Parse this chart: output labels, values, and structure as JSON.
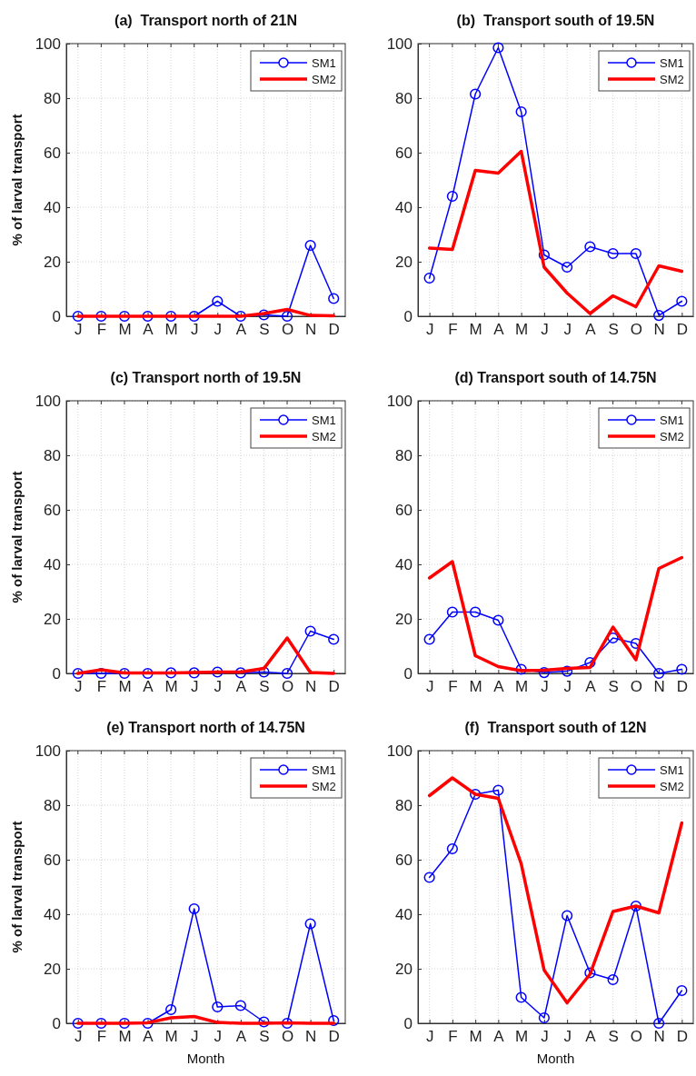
{
  "chart_data": [
    {
      "type": "line",
      "title": "(a)  Transport north of 21N",
      "ylabel": "% of larval transport",
      "categories": [
        "J",
        "F",
        "M",
        "A",
        "M",
        "J",
        "J",
        "A",
        "S",
        "O",
        "N",
        "D"
      ],
      "ylim": [
        0,
        100
      ],
      "yticks": [
        0,
        20,
        40,
        60,
        80,
        100
      ],
      "grid": true,
      "legend": "top right",
      "series": [
        {
          "name": "SM1",
          "color": "#0000ff",
          "marker": "circle",
          "values": [
            0,
            0,
            0,
            0,
            0,
            0,
            5.5,
            0,
            0.5,
            0,
            26,
            6.5
          ]
        },
        {
          "name": "SM2",
          "color": "#ff0000",
          "marker": "none",
          "values": [
            0,
            0,
            0,
            0,
            0,
            0,
            0,
            0,
            1,
            2.5,
            0.3,
            0.2
          ]
        }
      ]
    },
    {
      "type": "line",
      "title": "(b)  Transport south of 19.5N",
      "categories": [
        "J",
        "F",
        "M",
        "A",
        "M",
        "J",
        "J",
        "A",
        "S",
        "O",
        "N",
        "D"
      ],
      "ylim": [
        0,
        100
      ],
      "yticks": [
        0,
        20,
        40,
        60,
        80,
        100
      ],
      "grid": true,
      "legend": "top right",
      "series": [
        {
          "name": "SM1",
          "color": "#0000ff",
          "marker": "circle",
          "values": [
            14,
            44,
            81.5,
            98.5,
            75,
            22.5,
            18,
            25.5,
            23,
            23,
            0.3,
            5.5
          ]
        },
        {
          "name": "SM2",
          "color": "#ff0000",
          "marker": "none",
          "values": [
            25,
            24.5,
            53.5,
            52.5,
            60.5,
            18,
            8.5,
            1,
            7.5,
            3.5,
            18.5,
            16.5
          ]
        }
      ]
    },
    {
      "type": "line",
      "title": "(c) Transport north of 19.5N",
      "ylabel": "% of larval transport",
      "categories": [
        "J",
        "F",
        "M",
        "A",
        "M",
        "J",
        "J",
        "A",
        "S",
        "O",
        "N",
        "D"
      ],
      "ylim": [
        0,
        100
      ],
      "yticks": [
        0,
        20,
        40,
        60,
        80,
        100
      ],
      "grid": true,
      "legend": "top right",
      "series": [
        {
          "name": "SM1",
          "color": "#0000ff",
          "marker": "circle",
          "values": [
            0,
            0,
            0,
            0,
            0.2,
            0.2,
            0.5,
            0.2,
            0.5,
            0,
            15.5,
            12.5
          ]
        },
        {
          "name": "SM2",
          "color": "#ff0000",
          "marker": "none",
          "values": [
            0,
            1.3,
            0.2,
            0.2,
            0.2,
            0.3,
            0.5,
            0.5,
            1.8,
            13,
            0.3,
            0
          ]
        }
      ]
    },
    {
      "type": "line",
      "title": "(d) Transport south of 14.75N",
      "categories": [
        "J",
        "F",
        "M",
        "A",
        "M",
        "J",
        "J",
        "A",
        "S",
        "O",
        "N",
        "D"
      ],
      "ylim": [
        0,
        100
      ],
      "yticks": [
        0,
        20,
        40,
        60,
        80,
        100
      ],
      "grid": true,
      "legend": "top right",
      "series": [
        {
          "name": "SM1",
          "color": "#0000ff",
          "marker": "circle",
          "values": [
            12.5,
            22.5,
            22.5,
            19.5,
            1.5,
            0.3,
            0.8,
            4,
            13,
            11,
            0,
            1.5
          ]
        },
        {
          "name": "SM2",
          "color": "#ff0000",
          "marker": "none",
          "values": [
            35,
            41,
            6.5,
            2.5,
            1,
            1.2,
            1.8,
            2.2,
            17,
            5,
            38.5,
            42.5
          ]
        }
      ]
    },
    {
      "type": "line",
      "title": "(e) Transport north of 14.75N",
      "ylabel": "% of larval transport",
      "xlabel": "Month",
      "categories": [
        "J",
        "F",
        "M",
        "A",
        "M",
        "J",
        "J",
        "A",
        "S",
        "O",
        "N",
        "D"
      ],
      "ylim": [
        0,
        100
      ],
      "yticks": [
        0,
        20,
        40,
        60,
        80,
        100
      ],
      "grid": true,
      "legend": "top right",
      "series": [
        {
          "name": "SM1",
          "color": "#0000ff",
          "marker": "circle",
          "values": [
            0,
            0,
            0,
            0,
            5,
            42,
            6,
            6.5,
            0.5,
            0,
            36.5,
            1
          ]
        },
        {
          "name": "SM2",
          "color": "#ff0000",
          "marker": "none",
          "values": [
            0,
            0,
            0,
            0.2,
            2,
            2.5,
            0.3,
            0,
            0,
            0.2,
            0,
            0
          ]
        }
      ]
    },
    {
      "type": "line",
      "title": "(f)  Transport south of 12N",
      "xlabel": "Month",
      "categories": [
        "J",
        "F",
        "M",
        "A",
        "M",
        "J",
        "J",
        "A",
        "S",
        "O",
        "N",
        "D"
      ],
      "ylim": [
        0,
        100
      ],
      "yticks": [
        0,
        20,
        40,
        60,
        80,
        100
      ],
      "grid": true,
      "legend": "top right",
      "series": [
        {
          "name": "SM1",
          "color": "#0000ff",
          "marker": "circle",
          "values": [
            53.5,
            64,
            84,
            85.5,
            9.5,
            2,
            39.5,
            18.5,
            16,
            43,
            0,
            12
          ]
        },
        {
          "name": "SM2",
          "color": "#ff0000",
          "marker": "none",
          "values": [
            83.5,
            90,
            84,
            82.5,
            58.5,
            19.5,
            7.5,
            18,
            41,
            43,
            40.5,
            73.5
          ]
        }
      ]
    }
  ]
}
